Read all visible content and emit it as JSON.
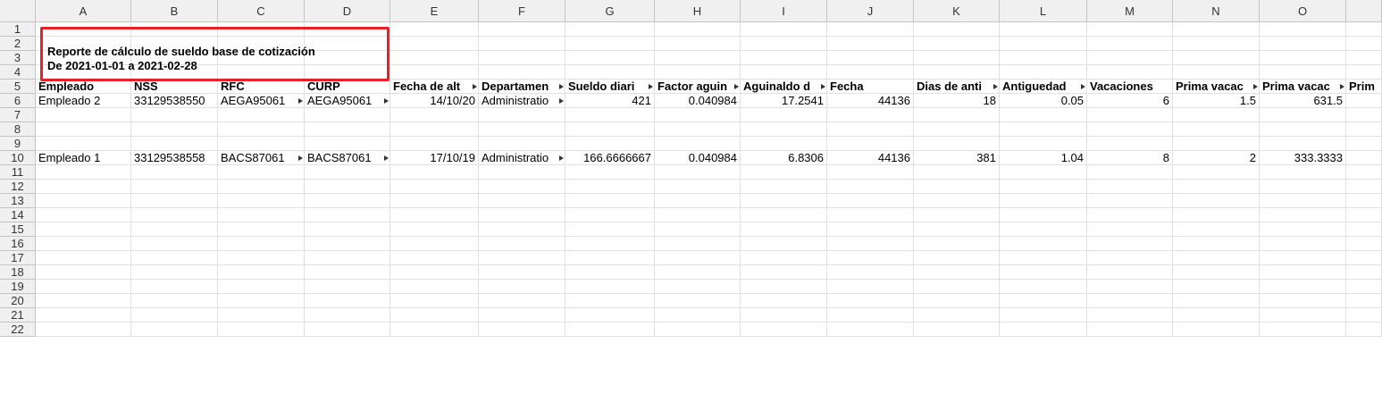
{
  "columns": [
    "A",
    "B",
    "C",
    "D",
    "E",
    "F",
    "G",
    "H",
    "I",
    "J",
    "K",
    "L",
    "M",
    "N",
    "O"
  ],
  "rows": [
    "1",
    "2",
    "3",
    "4",
    "5",
    "6",
    "7",
    "8",
    "9",
    "10",
    "11",
    "12",
    "13",
    "14",
    "15",
    "16",
    "17",
    "18",
    "19",
    "20",
    "21",
    "22"
  ],
  "report": {
    "title": "Reporte de cálculo de sueldo base de cotización",
    "period": "De  2021-01-01 a 2021-02-28"
  },
  "headers": [
    "Empleado",
    "NSS",
    "RFC",
    "CURP",
    "Fecha de alt",
    "Departamen",
    "Sueldo diari",
    "Factor aguin",
    "Aguinaldo d",
    "Fecha",
    "Dias de anti",
    "Antiguedad",
    "Vacaciones",
    "Prima vacac",
    "Prima vacac",
    "Prim"
  ],
  "data_rows": [
    {
      "row": "6",
      "cells": [
        "Empleado 2",
        "33129538550",
        "AEGA95061",
        "AEGA95061",
        "14/10/20",
        "Administratio",
        "421",
        "0.040984",
        "17.2541",
        "44136",
        "18",
        "0.05",
        "6",
        "1.5",
        "631.5"
      ]
    },
    {
      "row": "10",
      "cells": [
        "Empleado 1",
        "33129538558",
        "BACS87061",
        "BACS87061",
        "17/10/19",
        "Administratio",
        "166.6666667",
        "0.040984",
        "6.8306",
        "44136",
        "381",
        "1.04",
        "8",
        "2",
        "333.3333"
      ]
    }
  ],
  "colors": {
    "highlight": "#e8202a",
    "header_bg": "#f0f0f0",
    "grid": "#e0e0e0"
  }
}
